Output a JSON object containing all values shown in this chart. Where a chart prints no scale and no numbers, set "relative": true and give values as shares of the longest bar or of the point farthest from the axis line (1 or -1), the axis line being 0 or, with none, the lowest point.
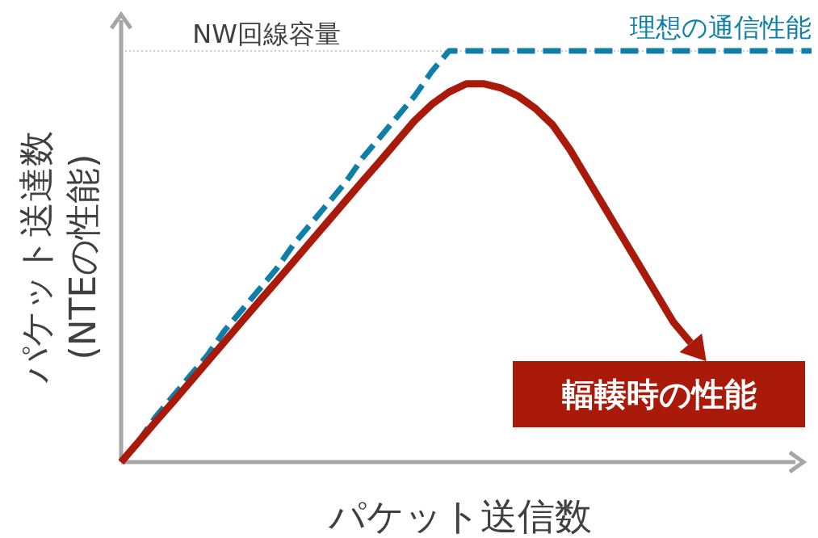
{
  "chart_data": {
    "type": "line",
    "relative": true,
    "xlabel": "パケット送信数",
    "ylabel": "パケット送達数\n(NTEの性能)",
    "categories": [
      null,
      null,
      null,
      null,
      null,
      null,
      null,
      null,
      null,
      null,
      null,
      null,
      null,
      null,
      null,
      null,
      null,
      null,
      null,
      null,
      null,
      null,
      null,
      null,
      null,
      null,
      null,
      null,
      null,
      null,
      null,
      null,
      null,
      null,
      null,
      null,
      null,
      null,
      null,
      null,
      null
    ],
    "series": [
      {
        "name": "理想の通信性能",
        "color": "#0e7fa8",
        "line_style": "dashed",
        "values": [
          0,
          0.05,
          0.11,
          0.16,
          0.21,
          0.26,
          0.32,
          0.37,
          0.42,
          0.47,
          0.53,
          0.58,
          0.63,
          0.68,
          0.74,
          0.79,
          0.84,
          0.89,
          0.95,
          1,
          1,
          1,
          1,
          1,
          1,
          1,
          1,
          1,
          1,
          1,
          1,
          1,
          1,
          1,
          1,
          1,
          1,
          1,
          1,
          1,
          1
        ]
      },
      {
        "name": "輻輳時の性能",
        "color": "#aa1a0a",
        "line_style": "solid",
        "values": [
          0,
          0.049,
          0.098,
          0.146,
          0.195,
          0.244,
          0.293,
          0.342,
          0.391,
          0.439,
          0.488,
          0.537,
          0.586,
          0.635,
          0.684,
          0.732,
          0.781,
          0.83,
          0.87,
          0.9,
          0.92,
          0.92,
          0.91,
          0.89,
          0.86,
          0.82,
          0.76,
          0.69,
          0.62,
          0.55,
          0.48,
          0.41,
          0.34,
          0.29,
          null,
          null,
          null,
          null,
          null,
          null,
          null
        ]
      }
    ],
    "ref_lines": [
      {
        "axis": "y",
        "value": 1,
        "label": "NW回線容量",
        "color": "#999999",
        "line_style": "dotted"
      }
    ]
  }
}
